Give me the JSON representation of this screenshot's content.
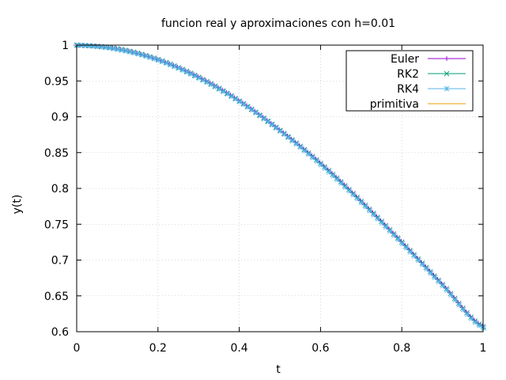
{
  "chart_data": {
    "type": "line",
    "title": "funcion real y aproximaciones con h=0.01",
    "xlabel": "t",
    "ylabel": "y(t)",
    "xlim": [
      0,
      1
    ],
    "ylim": [
      0.6,
      1
    ],
    "xticks": [
      0,
      0.2,
      0.4,
      0.6,
      0.8,
      1
    ],
    "xtick_labels": [
      "0",
      "0.2",
      "0.4",
      "0.6",
      "0.8",
      "1"
    ],
    "yticks": [
      0.6,
      0.65,
      0.7,
      0.75,
      0.8,
      0.85,
      0.9,
      0.95,
      1
    ],
    "ytick_labels": [
      "0.6",
      "0.65",
      "0.7",
      "0.75",
      "0.8",
      "0.85",
      "0.9",
      "0.95",
      "1"
    ],
    "grid": true,
    "legend_position": "top-right",
    "x": [
      0,
      0.1,
      0.2,
      0.3,
      0.4,
      0.5,
      0.6,
      0.7,
      0.8,
      0.9,
      1
    ],
    "series": [
      {
        "name": "Euler",
        "color": "#9400d3",
        "marker": "plus",
        "values": [
          1.0,
          0.995,
          0.98,
          0.956,
          0.923,
          0.882,
          0.836,
          0.783,
          0.726,
          0.667,
          0.608
        ]
      },
      {
        "name": "RK2",
        "color": "#009e73",
        "marker": "cross",
        "values": [
          1.0,
          0.995,
          0.98,
          0.955,
          0.922,
          0.881,
          0.835,
          0.782,
          0.725,
          0.666,
          0.607
        ]
      },
      {
        "name": "RK4",
        "color": "#56b4e9",
        "marker": "asterisk",
        "values": [
          1.0,
          0.994,
          0.979,
          0.954,
          0.921,
          0.88,
          0.833,
          0.78,
          0.723,
          0.664,
          0.605
        ]
      },
      {
        "name": "primitiva",
        "color": "#e69f00",
        "marker": "none",
        "values": [
          1.0,
          0.995,
          0.98,
          0.955,
          0.922,
          0.881,
          0.835,
          0.782,
          0.725,
          0.666,
          0.607
        ]
      }
    ]
  }
}
